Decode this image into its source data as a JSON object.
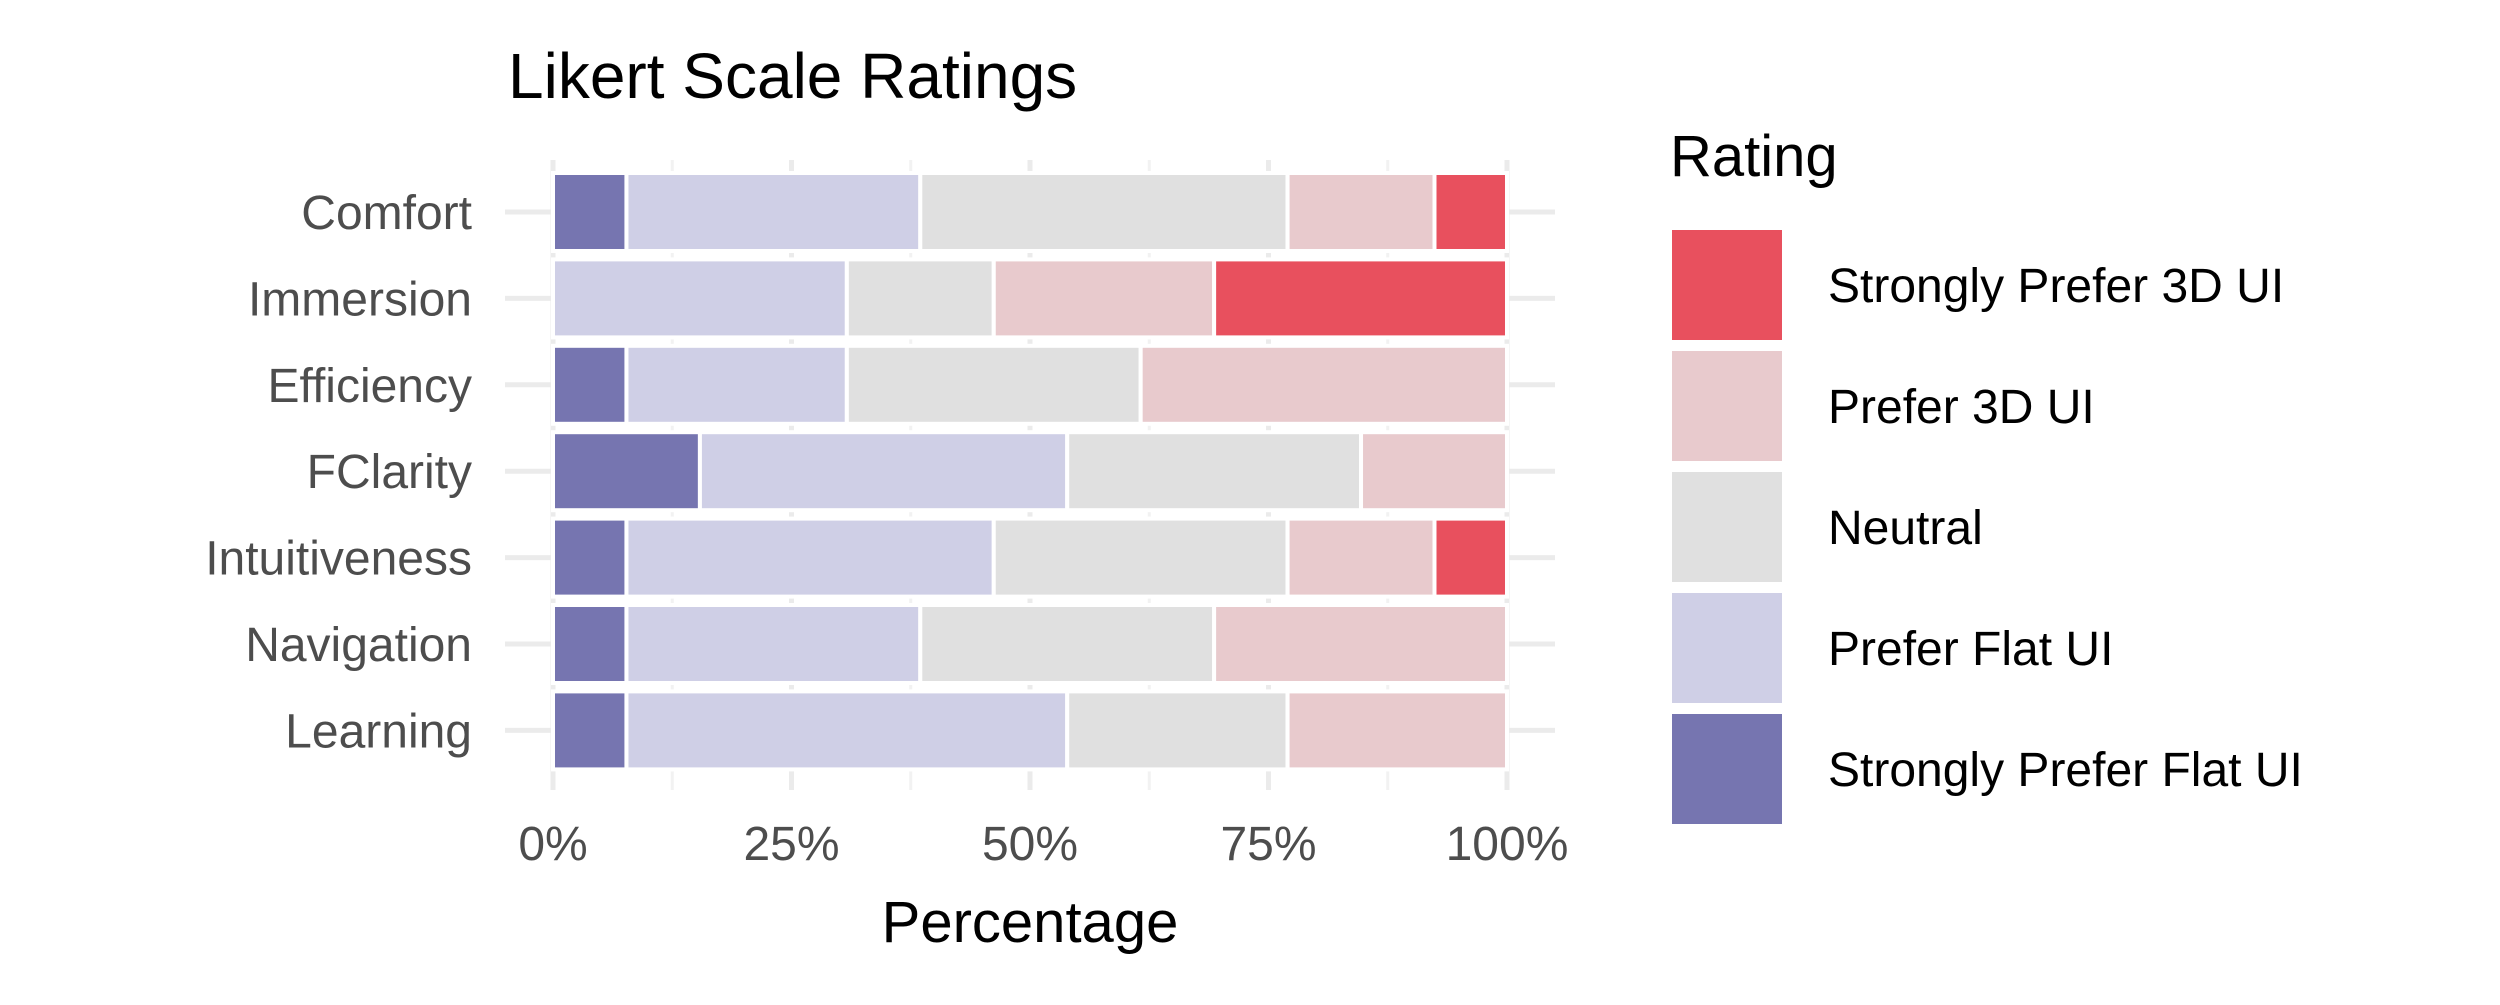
{
  "chart_data": {
    "type": "bar",
    "orientation": "horizontal",
    "stacked": true,
    "title": "Likert Scale Ratings",
    "xlabel": "Percentage",
    "ylabel": "",
    "xlim": [
      0,
      100
    ],
    "x_ticks": [
      "0%",
      "25%",
      "50%",
      "75%",
      "100%"
    ],
    "grid": true,
    "legend": {
      "title": "Rating",
      "position": "right"
    },
    "categories": [
      "Comfort",
      "Immersion",
      "Efficiency",
      "FClarity",
      "Intuitiveness",
      "Navigation",
      "Learning"
    ],
    "series": [
      {
        "name": "Strongly Prefer Flat UI",
        "color": "#7675b0",
        "values": [
          7.7,
          0,
          7.7,
          15.4,
          7.7,
          7.7,
          7.7
        ]
      },
      {
        "name": "Prefer Flat UI",
        "color": "#cfcfe6",
        "values": [
          30.8,
          30.8,
          23.1,
          38.5,
          38.5,
          30.8,
          46.2
        ]
      },
      {
        "name": "Neutral",
        "color": "#e0e0e0",
        "values": [
          38.5,
          15.4,
          30.8,
          30.8,
          30.8,
          30.8,
          23.1
        ]
      },
      {
        "name": "Prefer 3D UI",
        "color": "#e8cacd",
        "values": [
          15.4,
          23.1,
          38.4,
          15.3,
          15.4,
          30.7,
          23.0
        ]
      },
      {
        "name": "Strongly Prefer 3D UI",
        "color": "#e8505e",
        "values": [
          7.6,
          30.7,
          0,
          0,
          7.6,
          0,
          0
        ]
      }
    ],
    "legend_order": [
      "Strongly Prefer 3D UI",
      "Prefer 3D UI",
      "Neutral",
      "Prefer Flat UI",
      "Strongly Prefer Flat UI"
    ]
  }
}
